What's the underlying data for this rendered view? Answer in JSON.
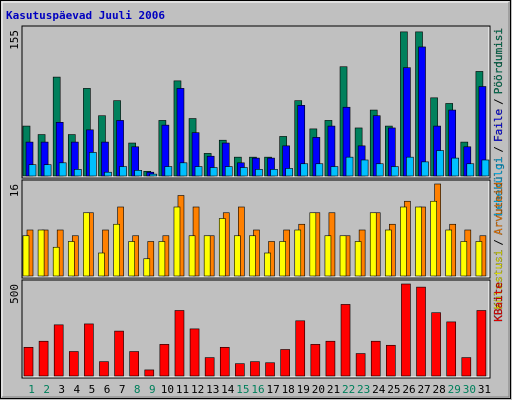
{
  "title": "Kasutuspäevad Juuli 2006",
  "legend_separator": "/",
  "chart_data": [
    {
      "type": "bar",
      "ylim": [
        0,
        155
      ],
      "yticks": [
        155
      ],
      "series": [
        {
          "name": "Pöördumisi",
          "color": "#00805c",
          "values": [
            53,
            44,
            105,
            44,
            93,
            64,
            80,
            35,
            5,
            59,
            101,
            61,
            24,
            38,
            20,
            20,
            20,
            42,
            80,
            50,
            59,
            116,
            51,
            70,
            53,
            153,
            153,
            83,
            77,
            36,
            111
          ]
        },
        {
          "name": "Faile",
          "color": "#0000ff",
          "values": [
            36,
            36,
            57,
            36,
            49,
            36,
            59,
            31,
            4,
            54,
            93,
            46,
            21,
            35,
            14,
            19,
            19,
            32,
            75,
            41,
            53,
            73,
            32,
            64,
            51,
            115,
            137,
            53,
            70,
            31,
            95
          ]
        },
        {
          "name": "Lehekülgi",
          "color": "#00c0ff",
          "values": [
            12,
            12,
            14,
            7,
            25,
            4,
            10,
            6,
            2,
            10,
            14,
            10,
            9,
            10,
            9,
            7,
            7,
            8,
            13,
            13,
            10,
            20,
            17,
            13,
            10,
            20,
            15,
            27,
            19,
            13,
            17
          ]
        }
      ]
    },
    {
      "type": "bar",
      "ylim": [
        0,
        16
      ],
      "yticks": [
        16
      ],
      "series": [
        {
          "name": "Arvuteid",
          "color": "#ff8000",
          "values": [
            8,
            8,
            8,
            7,
            11,
            8,
            12,
            7,
            6,
            7,
            14,
            12,
            7,
            11,
            12,
            8,
            6,
            8,
            9,
            11,
            11,
            7,
            8,
            11,
            9,
            13,
            12,
            16,
            9,
            8,
            7
          ]
        },
        {
          "name": "Külastusi",
          "color": "#ffff00",
          "values": [
            7,
            8,
            5,
            6,
            11,
            4,
            9,
            6,
            3,
            6,
            12,
            7,
            7,
            10,
            7,
            7,
            4,
            6,
            8,
            11,
            7,
            7,
            6,
            11,
            8,
            12,
            12,
            13,
            8,
            6,
            6
          ]
        }
      ]
    },
    {
      "type": "bar",
      "ylim": [
        0,
        500
      ],
      "yticks": [
        500
      ],
      "categories": [
        "1",
        "2",
        "3",
        "4",
        "5",
        "6",
        "7",
        "8",
        "9",
        "10",
        "11",
        "12",
        "13",
        "14",
        "15",
        "16",
        "17",
        "18",
        "19",
        "20",
        "21",
        "22",
        "23",
        "24",
        "25",
        "26",
        "27",
        "28",
        "29",
        "30",
        "31"
      ],
      "category_colors": [
        "#00805c",
        "#00805c",
        "#000000",
        "#000000",
        "#000000",
        "#000000",
        "#000000",
        "#00805c",
        "#00805c",
        "#000000",
        "#000000",
        "#000000",
        "#000000",
        "#000000",
        "#00805c",
        "#00805c",
        "#000000",
        "#000000",
        "#000000",
        "#000000",
        "#000000",
        "#00805c",
        "#00805c",
        "#000000",
        "#000000",
        "#000000",
        "#000000",
        "#000000",
        "#00805c",
        "#00805c",
        "#000000"
      ],
      "series": [
        {
          "name": "KBaite",
          "color": "#ff0000",
          "values": [
            156,
            189,
            278,
            133,
            283,
            78,
            244,
            133,
            33,
            172,
            356,
            256,
            100,
            156,
            67,
            78,
            72,
            144,
            300,
            172,
            189,
            389,
            122,
            189,
            167,
            500,
            483,
            344,
            294,
            100,
            356
          ]
        }
      ]
    }
  ]
}
